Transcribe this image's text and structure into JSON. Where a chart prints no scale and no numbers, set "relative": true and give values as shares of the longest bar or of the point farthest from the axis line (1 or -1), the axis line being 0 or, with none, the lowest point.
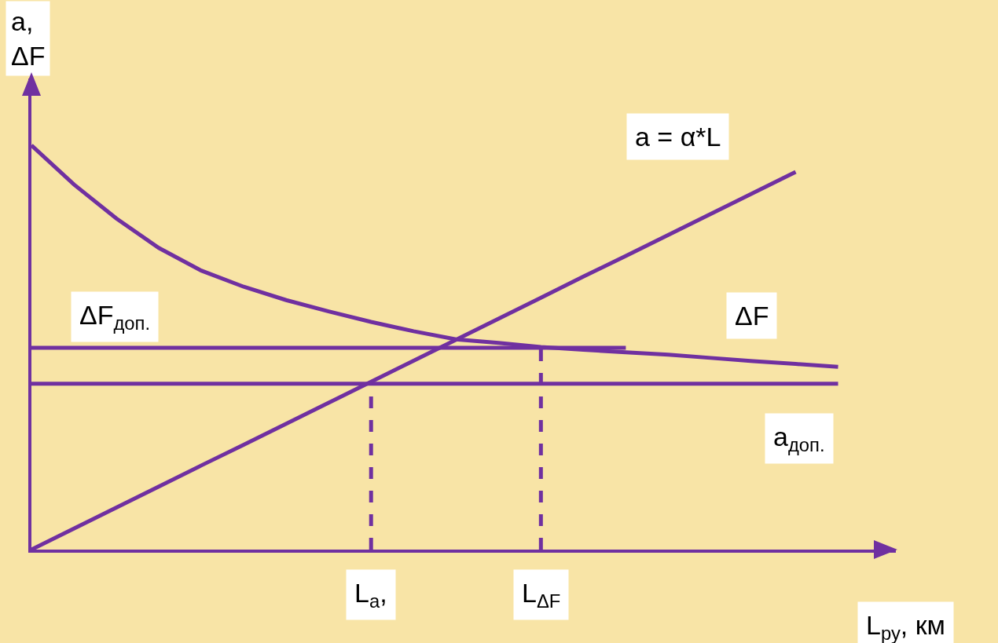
{
  "chart_data": {
    "type": "line",
    "relative": true,
    "xlabel": "L$_{ру}$, км",
    "ylabel": "a, ΔF",
    "grid": false,
    "legend": false,
    "categories": [
      null,
      null,
      null,
      null,
      null,
      null,
      null,
      null,
      null,
      null,
      null,
      null,
      null,
      null,
      null,
      null,
      null,
      null,
      null,
      null,
      null
    ],
    "series": [
      {
        "name": "a = α*L",
        "color": "#7030a0",
        "values": [
          0,
          0.052,
          0.104,
          0.156,
          0.208,
          0.259,
          0.311,
          0.363,
          0.415,
          0.467,
          0.519,
          0.571,
          0.623,
          0.675,
          0.726,
          0.778,
          0.83,
          0.882,
          0.934,
          null,
          null
        ]
      },
      {
        "name": "ΔF",
        "color": "#7030a0",
        "values": [
          1,
          0.903,
          0.819,
          0.746,
          0.69,
          0.65,
          0.617,
          0.589,
          0.563,
          0.54,
          0.52,
          0.511,
          0.501,
          0.494,
          0.488,
          0.482,
          0.474,
          0.466,
          0.459,
          0.452,
          null
        ]
      },
      {
        "name": "ΔF$_{доп.}$",
        "color": "#7030a0",
        "values": [
          0.499,
          0.499,
          0.499,
          0.499,
          0.499,
          0.499,
          0.499,
          0.499,
          0.499,
          0.499,
          0.499,
          0.499,
          0.499,
          0.499,
          0.499,
          null,
          null,
          null,
          null,
          null,
          null
        ]
      },
      {
        "name": "a$_{доп.}$",
        "color": "#7030a0",
        "values": [
          0.41,
          0.41,
          0.41,
          0.41,
          0.41,
          0.41,
          0.41,
          0.41,
          0.41,
          0.41,
          0.41,
          0.41,
          0.41,
          0.41,
          0.41,
          0.41,
          0.41,
          0.41,
          0.41,
          0.41,
          null
        ]
      }
    ],
    "annotations": [
      "L$_{a}$,",
      "L$_{ΔF}$"
    ]
  }
}
